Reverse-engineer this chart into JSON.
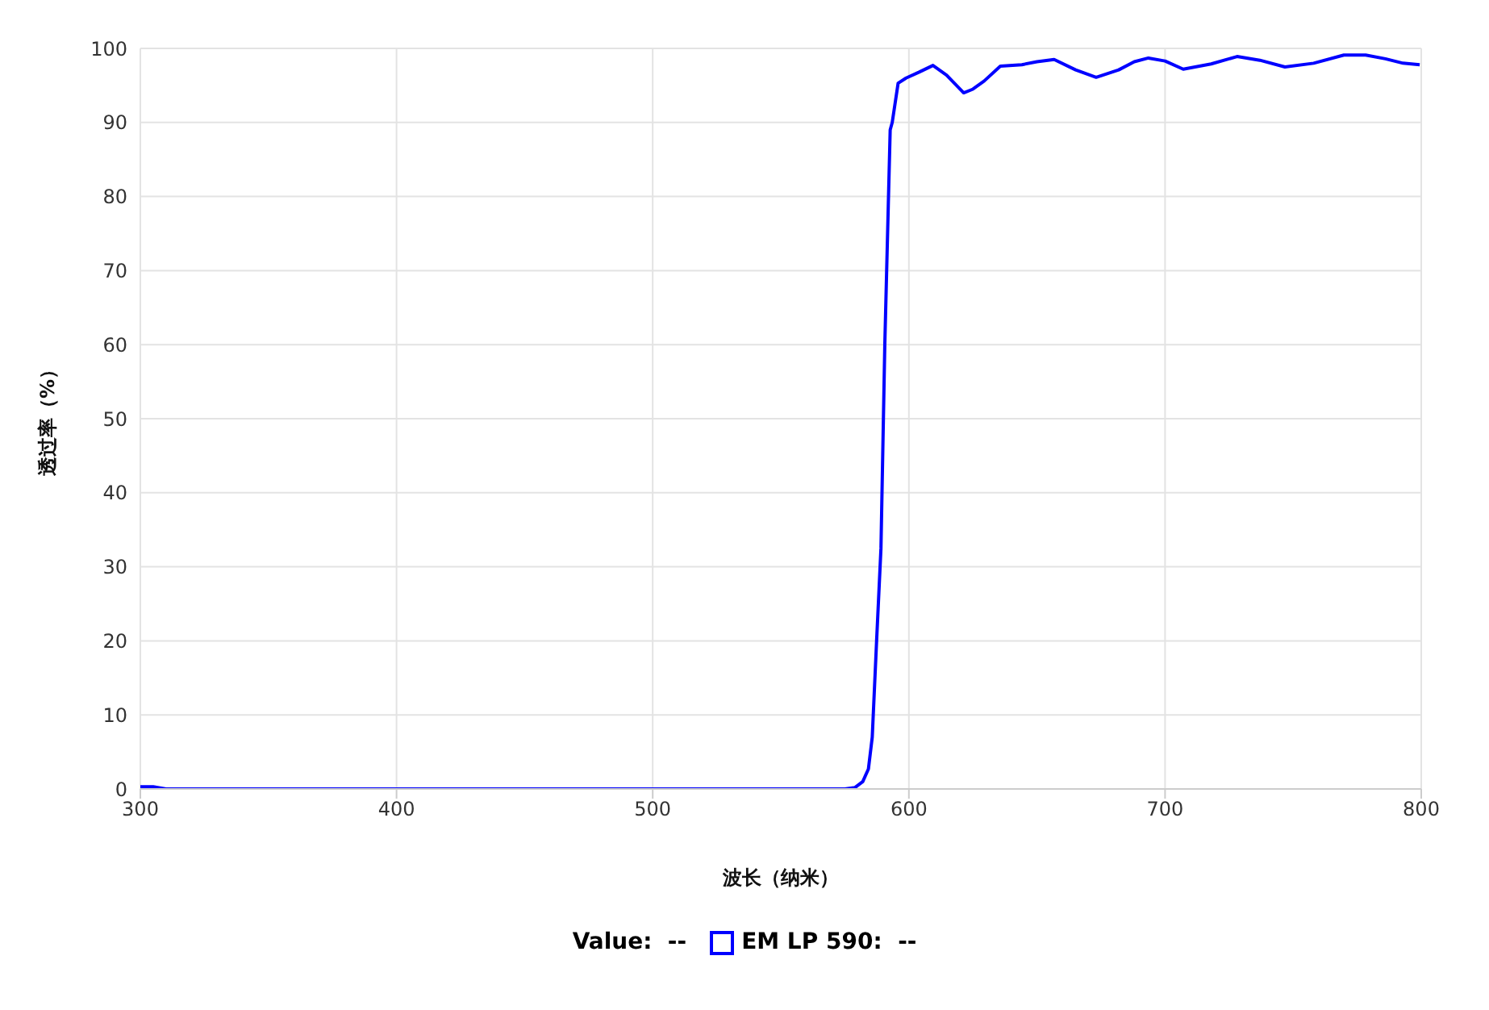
{
  "chart_data": {
    "type": "line",
    "xlabel": "波长（纳米）",
    "ylabel": "透过率（%）",
    "x": [
      300,
      305,
      310,
      400,
      500,
      575,
      579,
      582,
      584.2,
      585.7,
      587.4,
      589.1,
      590.6,
      592.7,
      593.5,
      595.8,
      598.9,
      604,
      609.4,
      614.7,
      621.4,
      625,
      629.4,
      635.7,
      644.1,
      650,
      656.7,
      665.1,
      673.1,
      681.9,
      688,
      693.5,
      700,
      707.1,
      718,
      728.1,
      737,
      746.8,
      758,
      769.8,
      778.3,
      786,
      792.9,
      799.4
    ],
    "series": [
      {
        "name": "EM LP 590",
        "color": "#0000ff",
        "values": [
          0.3,
          0.3,
          0,
          0,
          0,
          0,
          0.2,
          1,
          2.7,
          7,
          20,
          32.5,
          60,
          89,
          90,
          95.3,
          96,
          96.8,
          97.7,
          96.4,
          94.0,
          94.5,
          95.6,
          97.6,
          97.8,
          98.2,
          98.5,
          97.1,
          96.1,
          97.1,
          98.2,
          98.7,
          98.3,
          97.2,
          97.9,
          98.9,
          98.4,
          97.5,
          98.0,
          99.1,
          99.1,
          98.6,
          98.0,
          97.8
        ]
      }
    ],
    "xlim": [
      300,
      800
    ],
    "xticks": [
      300,
      400,
      500,
      600,
      700,
      800
    ],
    "ylim": [
      0,
      100
    ],
    "yticks": [
      0,
      10,
      20,
      30,
      40,
      50,
      60,
      70,
      80,
      90,
      100
    ],
    "grid": true,
    "legend": "bottom",
    "marker": "none",
    "line_style": "solid",
    "annotations": [
      "Value:  --",
      ":  --"
    ]
  }
}
